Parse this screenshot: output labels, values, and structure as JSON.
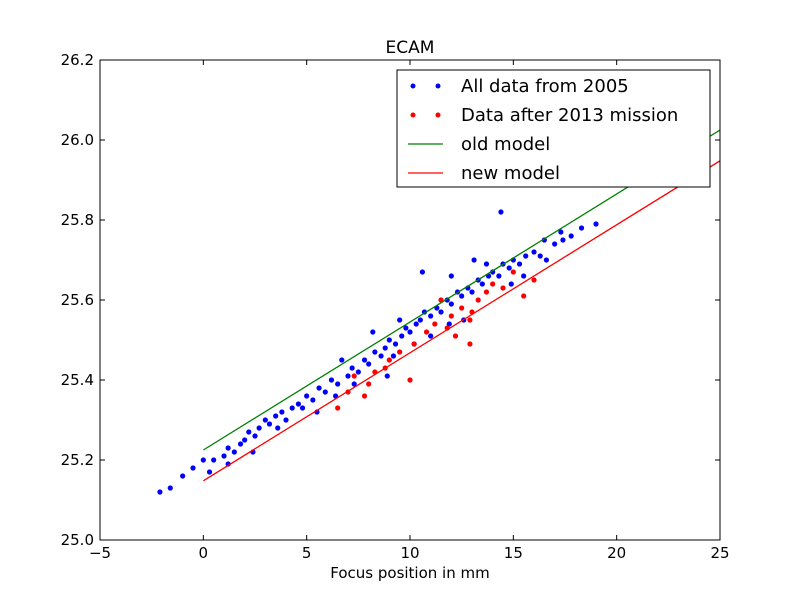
{
  "chart_data": {
    "type": "scatter",
    "title": "ECAM",
    "xlabel": "Focus position in mm",
    "ylabel": "",
    "xlim": [
      -5,
      25
    ],
    "ylim": [
      25.0,
      26.2
    ],
    "xticks": [
      "−5",
      "0",
      "5",
      "10",
      "15",
      "20",
      "25"
    ],
    "xtick_values": [
      -5,
      0,
      5,
      10,
      15,
      20,
      25
    ],
    "yticks": [
      "25.0",
      "25.2",
      "25.4",
      "25.6",
      "25.8",
      "26.0",
      "26.2"
    ],
    "ytick_values": [
      25.0,
      25.2,
      25.4,
      25.6,
      25.8,
      26.0,
      26.2
    ],
    "grid": false,
    "legend_position": "top-right",
    "series": [
      {
        "name": "All data from 2005",
        "kind": "points",
        "color": "#0000ff",
        "points": [
          [
            -2.1,
            25.12
          ],
          [
            -1.6,
            25.13
          ],
          [
            -1.0,
            25.16
          ],
          [
            -0.5,
            25.18
          ],
          [
            0.0,
            25.2
          ],
          [
            0.3,
            25.17
          ],
          [
            0.5,
            25.2
          ],
          [
            1.0,
            25.21
          ],
          [
            1.2,
            25.23
          ],
          [
            1.5,
            25.22
          ],
          [
            1.8,
            25.24
          ],
          [
            2.0,
            25.25
          ],
          [
            2.2,
            25.27
          ],
          [
            2.5,
            25.26
          ],
          [
            2.7,
            25.28
          ],
          [
            3.0,
            25.3
          ],
          [
            3.2,
            25.29
          ],
          [
            3.5,
            25.31
          ],
          [
            3.8,
            25.32
          ],
          [
            4.0,
            25.3
          ],
          [
            4.3,
            25.33
          ],
          [
            4.6,
            25.34
          ],
          [
            5.0,
            25.36
          ],
          [
            5.3,
            25.35
          ],
          [
            5.6,
            25.38
          ],
          [
            5.9,
            25.37
          ],
          [
            6.2,
            25.4
          ],
          [
            6.5,
            25.39
          ],
          [
            6.7,
            25.45
          ],
          [
            7.0,
            25.41
          ],
          [
            7.2,
            25.43
          ],
          [
            7.5,
            25.42
          ],
          [
            7.8,
            25.45
          ],
          [
            8.0,
            25.44
          ],
          [
            8.3,
            25.47
          ],
          [
            8.6,
            25.46
          ],
          [
            8.8,
            25.48
          ],
          [
            9.0,
            25.5
          ],
          [
            9.3,
            25.49
          ],
          [
            9.6,
            25.51
          ],
          [
            9.8,
            25.53
          ],
          [
            10.0,
            25.52
          ],
          [
            10.3,
            25.54
          ],
          [
            10.5,
            25.55
          ],
          [
            10.7,
            25.57
          ],
          [
            11.0,
            25.56
          ],
          [
            11.3,
            25.58
          ],
          [
            11.5,
            25.57
          ],
          [
            11.8,
            25.6
          ],
          [
            12.0,
            25.59
          ],
          [
            12.3,
            25.62
          ],
          [
            12.5,
            25.61
          ],
          [
            12.8,
            25.63
          ],
          [
            13.0,
            25.62
          ],
          [
            13.3,
            25.65
          ],
          [
            13.5,
            25.64
          ],
          [
            13.8,
            25.66
          ],
          [
            14.0,
            25.67
          ],
          [
            14.3,
            25.66
          ],
          [
            14.5,
            25.69
          ],
          [
            14.8,
            25.68
          ],
          [
            15.0,
            25.7
          ],
          [
            15.3,
            25.69
          ],
          [
            15.6,
            25.71
          ],
          [
            16.0,
            25.72
          ],
          [
            16.3,
            25.71
          ],
          [
            16.6,
            25.7
          ],
          [
            17.0,
            25.74
          ],
          [
            17.4,
            25.75
          ],
          [
            17.8,
            25.76
          ],
          [
            18.3,
            25.78
          ],
          [
            19.0,
            25.79
          ],
          [
            14.4,
            25.82
          ],
          [
            10.6,
            25.67
          ],
          [
            13.1,
            25.7
          ],
          [
            9.5,
            25.55
          ],
          [
            8.2,
            25.52
          ],
          [
            12.6,
            25.55
          ],
          [
            11.0,
            25.51
          ],
          [
            6.4,
            25.36
          ],
          [
            3.6,
            25.28
          ],
          [
            2.4,
            25.22
          ],
          [
            15.5,
            25.66
          ],
          [
            16.5,
            25.75
          ],
          [
            17.3,
            25.77
          ],
          [
            5.5,
            25.32
          ],
          [
            7.3,
            25.39
          ],
          [
            12.0,
            25.66
          ],
          [
            13.7,
            25.69
          ],
          [
            10.2,
            25.49
          ],
          [
            4.8,
            25.33
          ],
          [
            1.2,
            25.19
          ],
          [
            8.9,
            25.41
          ],
          [
            14.9,
            25.64
          ],
          [
            11.9,
            25.54
          ],
          [
            9.2,
            25.46
          ]
        ]
      },
      {
        "name": "Data after 2013 mission",
        "kind": "points",
        "color": "#ff0000",
        "points": [
          [
            6.5,
            25.33
          ],
          [
            7.0,
            25.37
          ],
          [
            7.3,
            25.41
          ],
          [
            7.8,
            25.36
          ],
          [
            8.0,
            25.39
          ],
          [
            8.3,
            25.42
          ],
          [
            8.8,
            25.43
          ],
          [
            9.0,
            25.45
          ],
          [
            9.5,
            25.47
          ],
          [
            10.0,
            25.4
          ],
          [
            10.2,
            25.49
          ],
          [
            10.8,
            25.52
          ],
          [
            11.2,
            25.54
          ],
          [
            11.8,
            25.53
          ],
          [
            12.0,
            25.56
          ],
          [
            12.5,
            25.58
          ],
          [
            12.9,
            25.55
          ],
          [
            13.3,
            25.6
          ],
          [
            13.7,
            25.62
          ],
          [
            14.0,
            25.64
          ],
          [
            14.5,
            25.63
          ],
          [
            15.0,
            25.67
          ],
          [
            15.5,
            25.61
          ],
          [
            12.2,
            25.51
          ],
          [
            13.0,
            25.57
          ],
          [
            12.9,
            25.49
          ],
          [
            11.5,
            25.6
          ],
          [
            16.0,
            25.65
          ]
        ]
      },
      {
        "name": "old model",
        "kind": "line",
        "color": "#008000",
        "points": [
          [
            0,
            25.225
          ],
          [
            25,
            26.025
          ]
        ]
      },
      {
        "name": "new model",
        "kind": "line",
        "color": "#ff0000",
        "points": [
          [
            0,
            25.148
          ],
          [
            25,
            25.948
          ]
        ]
      }
    ]
  }
}
